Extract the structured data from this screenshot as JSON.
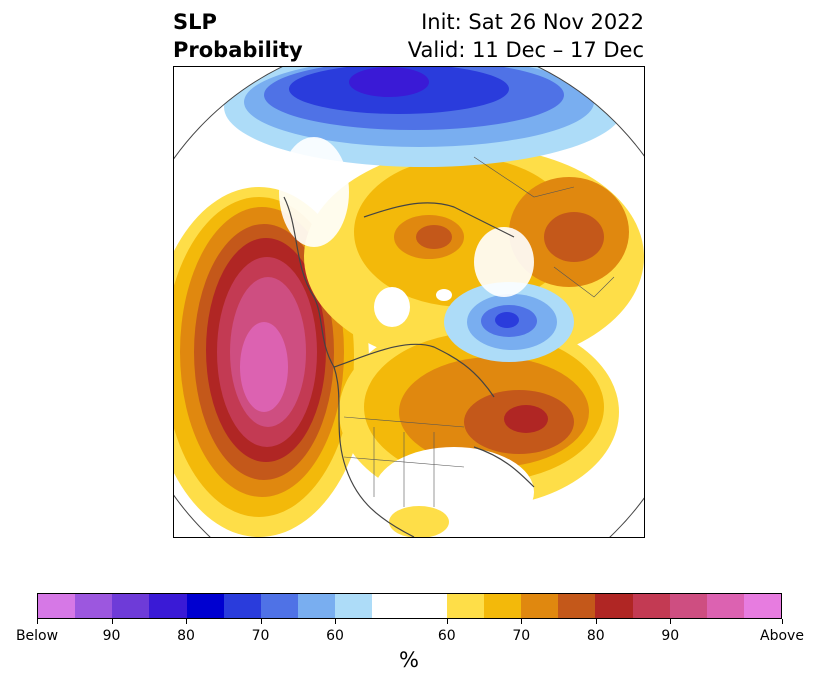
{
  "title": {
    "left_line1": "SLP",
    "left_line2": "Probability",
    "right_line1": "Init: Sat 26 Nov 2022",
    "right_line2": "Valid: 11 Dec – 17 Dec"
  },
  "colorbar": {
    "colors": [
      "#d678e6",
      "#9c57df",
      "#6e3bd8",
      "#3a1ad6",
      "#0000d0",
      "#2a3cdc",
      "#4f72e6",
      "#79aef0",
      "#addcf8",
      "#ffffff",
      "#ffffff",
      "#fede48",
      "#f3b90a",
      "#e0880f",
      "#c4581a",
      "#b02624",
      "#c33a53",
      "#ce4e81",
      "#dc62b1",
      "#e77ce0"
    ],
    "tick_labels": [
      "Below",
      "90",
      "80",
      "70",
      "60",
      "60",
      "70",
      "80",
      "90",
      "Above"
    ],
    "unit_label": "%"
  },
  "map": {
    "region": "Northern Hemisphere polar projection",
    "palette_above": [
      "#fede48",
      "#f3b90a",
      "#e0880f",
      "#c4581a",
      "#b02624",
      "#c33a53",
      "#ce4e81",
      "#dc62b1"
    ],
    "palette_below": [
      "#addcf8",
      "#79aef0",
      "#4f72e6",
      "#2a3cdc",
      "#0000d0",
      "#3a1ad6"
    ]
  }
}
